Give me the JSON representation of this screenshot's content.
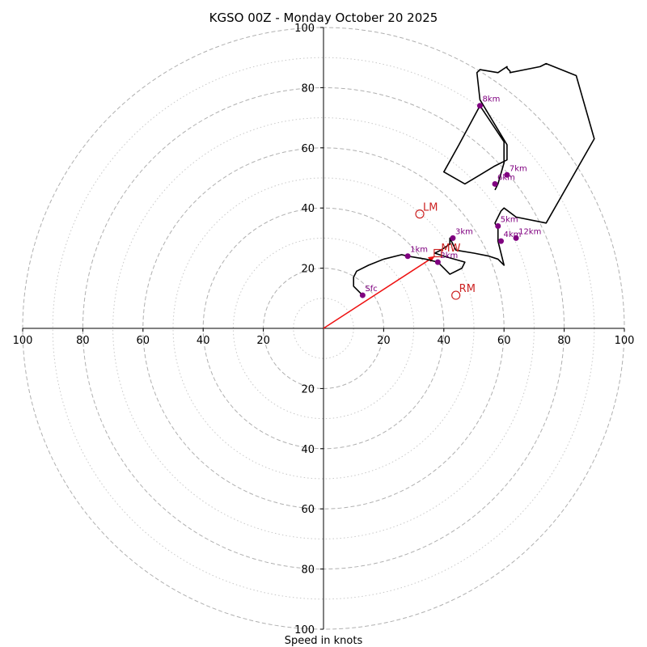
{
  "chart_data": {
    "type": "line",
    "title": "KGSO 00Z - Monday October 20 2025",
    "xlabel": "Speed in knots",
    "ylabel": "",
    "xlim": [
      -100,
      100
    ],
    "ylim": [
      -100,
      100
    ],
    "grid": true,
    "rings_dashed": [
      20,
      40,
      60,
      80,
      100
    ],
    "rings_dotted": [
      10,
      30,
      50,
      70,
      90
    ],
    "tick_values": [
      20,
      40,
      60,
      80,
      100
    ],
    "tick_labels": [
      "20",
      "40",
      "60",
      "80",
      "100"
    ],
    "colors": {
      "hodograph": "#000000",
      "height_marker": "#800080",
      "motion": "#cc2222",
      "grid": "#b0b0b0",
      "axis": "#000000"
    },
    "hodograph": {
      "x": [
        13,
        10,
        10,
        11,
        15,
        20,
        26,
        28,
        34,
        38,
        40,
        42,
        46,
        47,
        40,
        37,
        39,
        42,
        42,
        44,
        50,
        55,
        58,
        60,
        59,
        58,
        58,
        57,
        58,
        59,
        60,
        64,
        74,
        90,
        84,
        74,
        72,
        62,
        62,
        61,
        61,
        58,
        52,
        51,
        52,
        61,
        61,
        57,
        52,
        47,
        40,
        45,
        52,
        60,
        60,
        58,
        57
      ],
      "y": [
        11,
        14,
        17,
        19,
        21,
        23,
        24.5,
        24,
        23,
        22,
        20,
        18,
        20,
        22,
        24,
        25,
        26,
        28,
        30,
        26,
        25,
        24,
        23,
        21,
        25,
        29,
        33,
        35,
        37,
        39,
        40,
        37,
        35,
        63,
        84,
        88,
        87,
        85,
        85.5,
        86.5,
        87,
        85,
        86,
        85,
        76,
        61,
        56,
        54,
        51,
        48,
        52,
        61,
        74,
        62,
        55,
        48,
        46
      ]
    },
    "height_markers": [
      {
        "label": "Sfc",
        "x": 13,
        "y": 11
      },
      {
        "label": "1km",
        "x": 28,
        "y": 24
      },
      {
        "label": "2km",
        "x": 38,
        "y": 22
      },
      {
        "label": "3km",
        "x": 43,
        "y": 30
      },
      {
        "label": "4km",
        "x": 59,
        "y": 29
      },
      {
        "label": "5km",
        "x": 58,
        "y": 34
      },
      {
        "label": "6km",
        "x": 57,
        "y": 48
      },
      {
        "label": "7km",
        "x": 61,
        "y": 51
      },
      {
        "label": "8km",
        "x": 52,
        "y": 74
      },
      {
        "label": "12km",
        "x": 64,
        "y": 30
      }
    ],
    "storm_motion": [
      {
        "label": "LM",
        "x": 32,
        "y": 38
      },
      {
        "label": "RM",
        "x": 44,
        "y": 11
      }
    ],
    "mean_wind": {
      "label": "MW",
      "x": 38,
      "y": 25
    },
    "motion_vector": {
      "x": [
        0,
        37
      ],
      "y": [
        0,
        24
      ]
    }
  }
}
